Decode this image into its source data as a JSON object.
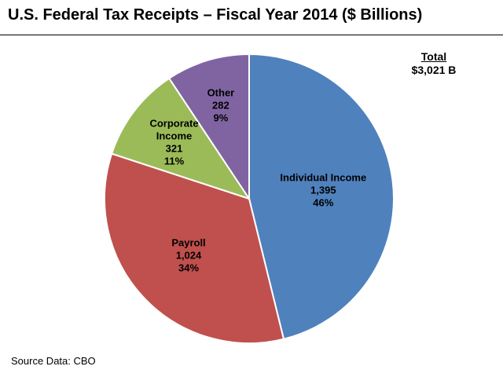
{
  "chart_data": {
    "type": "pie",
    "title": "U.S. Federal Tax Receipts – Fiscal Year 2014 ($ Billions)",
    "total_label": "Total",
    "total_value": "$3,021 B",
    "source": "Source Data:  CBO",
    "slices": [
      {
        "name": "individual-income",
        "label_lines": [
          "Individual Income"
        ],
        "value": 1395,
        "value_text": "1,395",
        "percent_text": "46%",
        "color": "#4f81bd"
      },
      {
        "name": "payroll",
        "label_lines": [
          "Payroll"
        ],
        "value": 1024,
        "value_text": "1,024",
        "percent_text": "34%",
        "color": "#c0504d"
      },
      {
        "name": "corporate-income",
        "label_lines": [
          "Corporate",
          "Income"
        ],
        "value": 321,
        "value_text": "321",
        "percent_text": "11%",
        "color": "#9bbb59"
      },
      {
        "name": "other",
        "label_lines": [
          "Other"
        ],
        "value": 282,
        "value_text": "282",
        "percent_text": "9%",
        "color": "#8064a2"
      }
    ]
  }
}
